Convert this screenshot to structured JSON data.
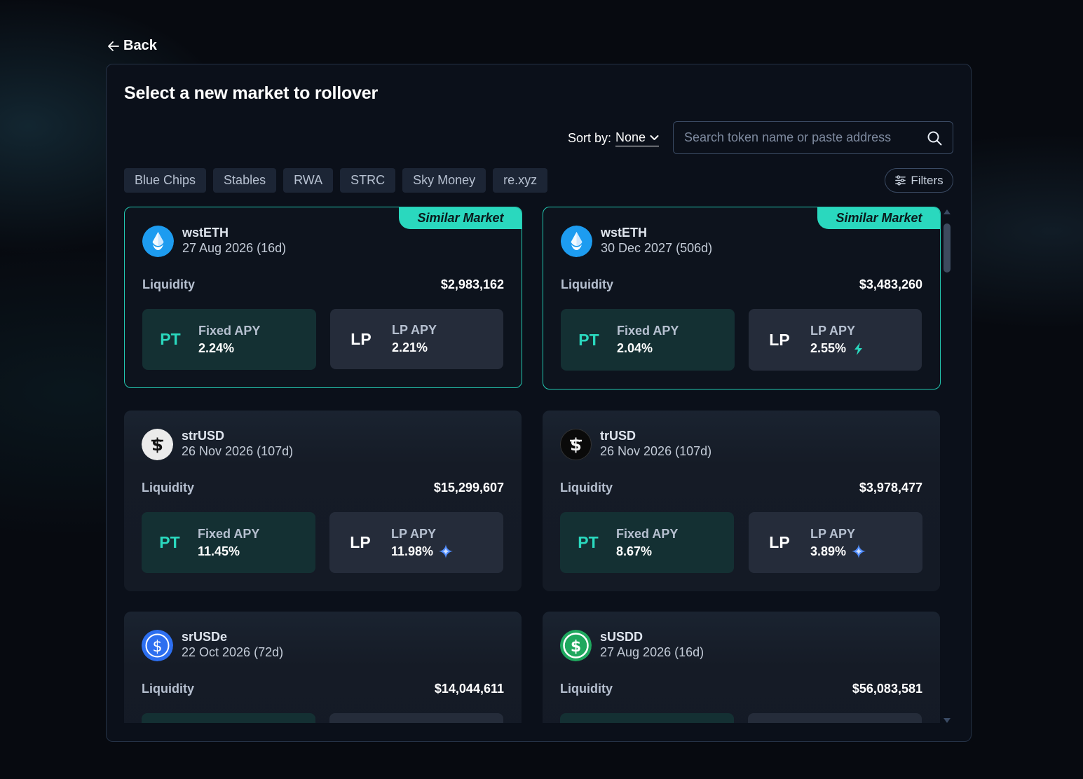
{
  "back": {
    "label": "Back"
  },
  "title": "Select a new market to rollover",
  "sort": {
    "label": "Sort by:",
    "value": "None"
  },
  "search": {
    "placeholder": "Search token name or paste address"
  },
  "chips": [
    "Blue Chips",
    "Stables",
    "RWA",
    "STRC",
    "Sky Money",
    "re.xyz"
  ],
  "filters": {
    "label": "Filters"
  },
  "badge_label": "Similar Market",
  "liquidity_label": "Liquidity",
  "pt_code": "PT",
  "lp_code": "LP",
  "fixed_apy_label": "Fixed APY",
  "lp_apy_label": "LP APY",
  "markets": [
    {
      "name": "wstETH",
      "date": "27 Aug 2026 (16d)",
      "liquidity": "$2,983,162",
      "fixed_apy": "2.24%",
      "lp_apy": "2.21%",
      "similar": true,
      "icon": "wsteth-icon",
      "lp_extra": "none"
    },
    {
      "name": "wstETH",
      "date": "30 Dec 2027 (506d)",
      "liquidity": "$3,483,260",
      "fixed_apy": "2.04%",
      "lp_apy": "2.55%",
      "similar": true,
      "icon": "wsteth-icon",
      "lp_extra": "lightning"
    },
    {
      "name": "strUSD",
      "date": "26 Nov 2026 (107d)",
      "liquidity": "$15,299,607",
      "fixed_apy": "11.45%",
      "lp_apy": "11.98%",
      "similar": false,
      "icon": "strusd-icon",
      "lp_extra": "sparkle"
    },
    {
      "name": "trUSD",
      "date": "26 Nov 2026 (107d)",
      "liquidity": "$3,978,477",
      "fixed_apy": "8.67%",
      "lp_apy": "3.89%",
      "similar": false,
      "icon": "trusd-icon",
      "lp_extra": "sparkle"
    },
    {
      "name": "srUSDe",
      "date": "22 Oct 2026 (72d)",
      "liquidity": "$14,044,611",
      "fixed_apy": "",
      "lp_apy": "",
      "similar": false,
      "icon": "srusde-icon",
      "lp_extra": "none"
    },
    {
      "name": "sUSDD",
      "date": "27 Aug 2026 (16d)",
      "liquidity": "$56,083,581",
      "fixed_apy": "",
      "lp_apy": "",
      "similar": false,
      "icon": "susdd-icon",
      "lp_extra": "none"
    }
  ],
  "colors": {
    "accent": "#2ad8be",
    "panel_border": "#253246",
    "background": "#070a10"
  }
}
